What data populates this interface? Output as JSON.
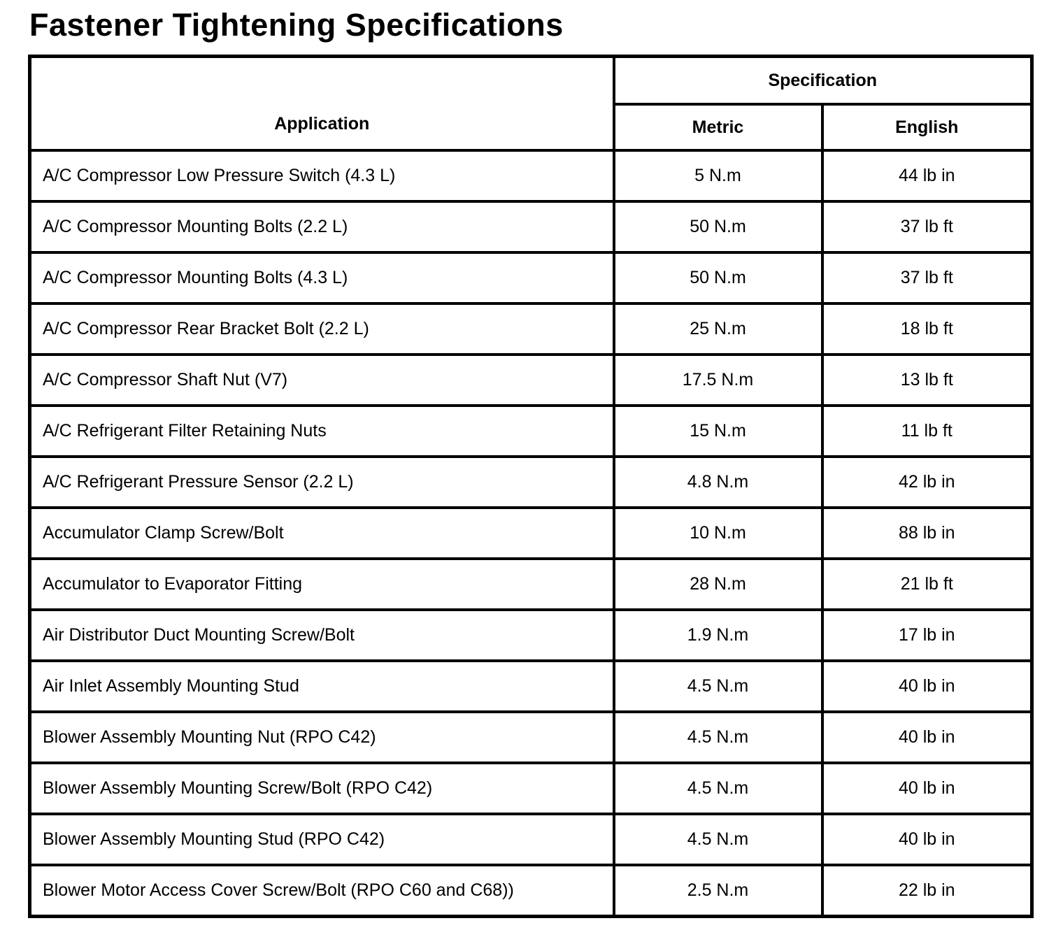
{
  "title": "Fastener Tightening Specifications",
  "table": {
    "headers": {
      "application": "Application",
      "specification": "Specification",
      "metric": "Metric",
      "english": "English"
    },
    "rows": [
      {
        "application": "A/C Compressor Low Pressure Switch (4.3 L)",
        "metric": "5 N.m",
        "english": "44 lb in"
      },
      {
        "application": "A/C Compressor Mounting Bolts (2.2 L)",
        "metric": "50 N.m",
        "english": "37 lb ft"
      },
      {
        "application": "A/C Compressor Mounting Bolts (4.3 L)",
        "metric": "50 N.m",
        "english": "37 lb ft"
      },
      {
        "application": "A/C Compressor Rear Bracket Bolt (2.2 L)",
        "metric": "25 N.m",
        "english": "18 lb ft"
      },
      {
        "application": "A/C Compressor Shaft Nut (V7)",
        "metric": "17.5 N.m",
        "english": "13 lb ft"
      },
      {
        "application": "A/C Refrigerant Filter Retaining Nuts",
        "metric": "15 N.m",
        "english": "11 lb ft"
      },
      {
        "application": "A/C Refrigerant Pressure Sensor (2.2 L)",
        "metric": "4.8 N.m",
        "english": "42 lb in"
      },
      {
        "application": "Accumulator Clamp Screw/Bolt",
        "metric": "10 N.m",
        "english": "88 lb in"
      },
      {
        "application": "Accumulator to Evaporator Fitting",
        "metric": "28 N.m",
        "english": "21 lb ft"
      },
      {
        "application": "Air Distributor Duct Mounting Screw/Bolt",
        "metric": "1.9 N.m",
        "english": "17 lb in"
      },
      {
        "application": "Air Inlet Assembly Mounting Stud",
        "metric": "4.5 N.m",
        "english": "40 lb in"
      },
      {
        "application": "Blower Assembly Mounting Nut (RPO C42)",
        "metric": "4.5 N.m",
        "english": "40 lb in"
      },
      {
        "application": "Blower Assembly Mounting Screw/Bolt (RPO C42)",
        "metric": "4.5 N.m",
        "english": "40 lb in"
      },
      {
        "application": "Blower Assembly Mounting Stud (RPO C42)",
        "metric": "4.5 N.m",
        "english": "40 lb in"
      },
      {
        "application": "Blower Motor Access Cover Screw/Bolt (RPO C60 and C68))",
        "metric": "2.5 N.m",
        "english": "22 lb in"
      }
    ]
  },
  "colors": {
    "text": "#000000",
    "background": "#ffffff",
    "border": "#000000"
  }
}
